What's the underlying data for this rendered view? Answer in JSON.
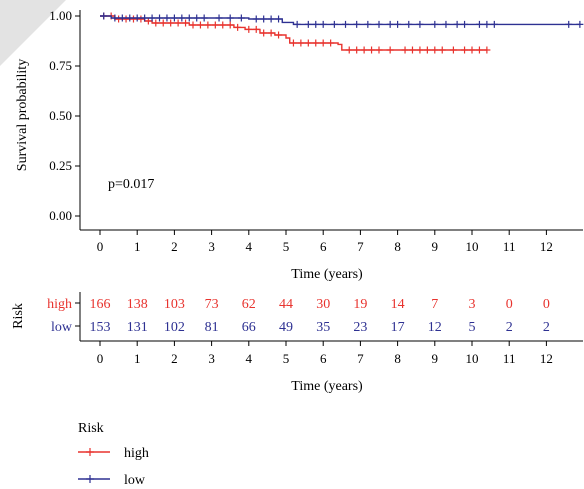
{
  "chart_data": [
    {
      "type": "line",
      "subtype": "kaplan-meier",
      "title": "",
      "xlabel": "Time (years)",
      "ylabel": "Survival probability",
      "xlim": [
        -0.6,
        13
      ],
      "ylim": [
        0,
        1
      ],
      "xticks": [
        "0",
        "1",
        "2",
        "3",
        "4",
        "5",
        "6",
        "7",
        "8",
        "9",
        "10",
        "11",
        "12"
      ],
      "yticks": [
        "0.00",
        "0.25",
        "0.50",
        "0.75",
        "1.00"
      ],
      "annotation": "p=0.017",
      "series": [
        {
          "name": "high",
          "color": "#e8332e",
          "steps": [
            [
              0,
              1.0
            ],
            [
              0.4,
              0.985
            ],
            [
              1.2,
              0.975
            ],
            [
              1.4,
              0.965
            ],
            [
              2.4,
              0.955
            ],
            [
              3.6,
              0.943
            ],
            [
              3.9,
              0.933
            ],
            [
              4.3,
              0.915
            ],
            [
              4.7,
              0.905
            ],
            [
              5.0,
              0.89
            ],
            [
              5.1,
              0.865
            ],
            [
              6.4,
              0.858
            ],
            [
              6.5,
              0.83
            ],
            [
              10.4,
              0.83
            ]
          ],
          "censor_times": [
            0.1,
            0.3,
            0.5,
            0.7,
            0.9,
            1.1,
            1.3,
            1.5,
            1.7,
            1.9,
            2.1,
            2.3,
            2.5,
            2.7,
            2.9,
            3.1,
            3.3,
            3.5,
            3.7,
            4.0,
            4.2,
            4.4,
            4.6,
            4.8,
            5.2,
            5.4,
            5.6,
            5.8,
            6.0,
            6.2,
            6.7,
            6.9,
            7.1,
            7.3,
            7.5,
            7.8,
            8.2,
            8.4,
            8.6,
            8.8,
            9.0,
            9.2,
            9.5,
            9.8,
            10.0,
            10.2,
            10.4
          ]
        },
        {
          "name": "low",
          "color": "#2e3192",
          "steps": [
            [
              0,
              1.0
            ],
            [
              0.3,
              0.99
            ],
            [
              4.0,
              0.985
            ],
            [
              4.9,
              0.968
            ],
            [
              5.2,
              0.958
            ],
            [
              12.9,
              0.958
            ]
          ],
          "censor_times": [
            0.1,
            0.4,
            0.6,
            0.8,
            1.0,
            1.2,
            1.4,
            1.6,
            1.8,
            2.0,
            2.2,
            2.4,
            2.6,
            2.8,
            3.2,
            3.5,
            3.8,
            4.2,
            4.4,
            4.6,
            4.8,
            5.3,
            5.6,
            5.8,
            6.0,
            6.3,
            6.6,
            6.9,
            7.2,
            7.5,
            7.8,
            8.0,
            8.3,
            8.6,
            9.0,
            9.3,
            9.6,
            9.8,
            10.2,
            10.4,
            10.6,
            12.6,
            12.9
          ]
        }
      ],
      "legend": {
        "title": "Risk",
        "position": "bottom-left",
        "entries": [
          "high",
          "low"
        ]
      }
    },
    {
      "type": "table",
      "title": "",
      "row_axis_label": "Risk",
      "xlabel": "Time (years)",
      "x": [
        0,
        1,
        2,
        3,
        4,
        5,
        6,
        7,
        8,
        9,
        10,
        11,
        12
      ],
      "xticks": [
        "0",
        "1",
        "2",
        "3",
        "4",
        "5",
        "6",
        "7",
        "8",
        "9",
        "10",
        "11",
        "12"
      ],
      "rows": [
        {
          "name": "high",
          "color": "#e8332e",
          "values": [
            166,
            138,
            103,
            73,
            62,
            44,
            30,
            19,
            14,
            7,
            3,
            0,
            0
          ]
        },
        {
          "name": "low",
          "color": "#2e3192",
          "values": [
            153,
            131,
            102,
            81,
            66,
            49,
            35,
            23,
            17,
            12,
            5,
            2,
            2
          ]
        }
      ]
    }
  ]
}
